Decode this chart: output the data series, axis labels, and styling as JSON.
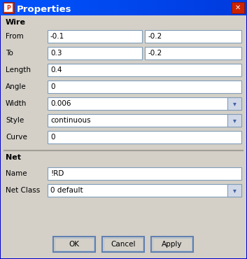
{
  "title": "Properties",
  "bg_color": "#d4d0c8",
  "titlebar_left": "#0055ff",
  "titlebar_right": "#0000cc",
  "titlebar_text_color": "#ffffff",
  "close_btn_color": "#cc2200",
  "section_wire": "Wire",
  "section_net": "Net",
  "field_bg": "#ffffff",
  "field_border": "#7f9db9",
  "dropdown_bg": "#d0d8e8",
  "dropdown_arrow_color": "#4060a0",
  "separator_color": "#a0a098",
  "label_color": "#000000",
  "outer_border": "#0000cc",
  "inner_border": "#e8e4d8",
  "buttons": [
    "OK",
    "Cancel",
    "Apply"
  ],
  "wire_rows": [
    {
      "label": "From",
      "v1": "-0.1",
      "v2": "-0.2",
      "dual": true,
      "dd": false
    },
    {
      "label": "To",
      "v1": "0.3",
      "v2": "-0.2",
      "dual": true,
      "dd": false
    },
    {
      "label": "Length",
      "v1": "0.4",
      "v2": null,
      "dual": false,
      "dd": false
    },
    {
      "label": "Angle",
      "v1": "0",
      "v2": null,
      "dual": false,
      "dd": false
    },
    {
      "label": "Width",
      "v1": "0.006",
      "v2": null,
      "dual": false,
      "dd": true
    },
    {
      "label": "Style",
      "v1": "continuous",
      "v2": null,
      "dual": false,
      "dd": true
    },
    {
      "label": "Curve",
      "v1": "0",
      "v2": null,
      "dual": false,
      "dd": false
    }
  ],
  "net_rows": [
    {
      "label": "Name",
      "v1": "!RD",
      "dual": false,
      "dd": false
    },
    {
      "label": "Net Class",
      "v1": "0 default",
      "dual": false,
      "dd": true
    }
  ]
}
